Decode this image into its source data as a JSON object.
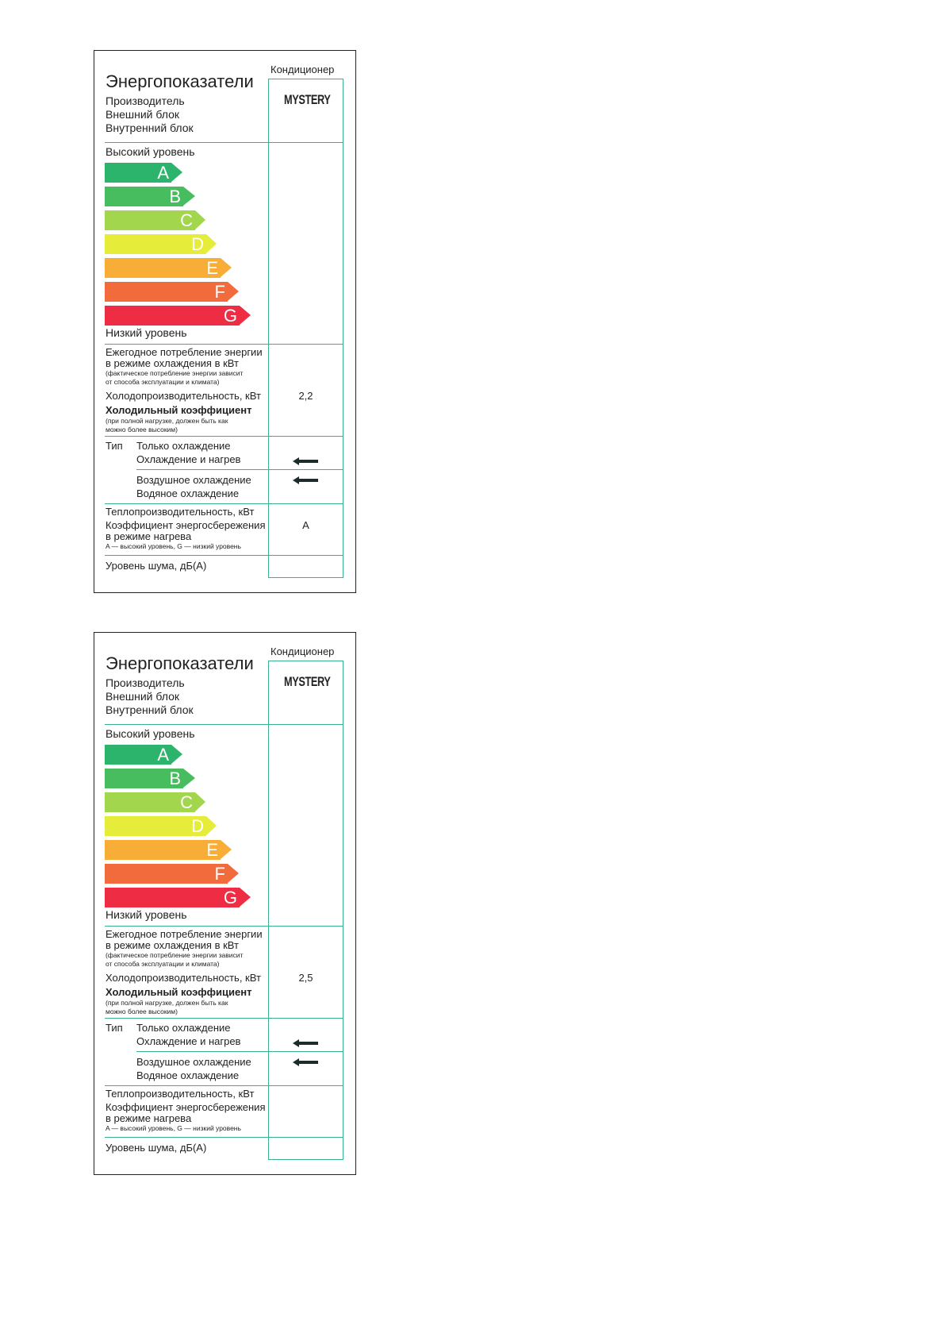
{
  "labels": [
    {
      "category": "Кондиционер",
      "title": "Энергопоказатели",
      "manufacturer_label": "Производитель",
      "outdoor_label": "Внешний блок",
      "indoor_label": "Внутренний блок",
      "brand": "MYSTERY",
      "high_level": "Высокий уровень",
      "low_level": "Низкий уровень",
      "classes": [
        {
          "letter": "A",
          "color": "#2db46c"
        },
        {
          "letter": "B",
          "color": "#47bd5f"
        },
        {
          "letter": "C",
          "color": "#a2d64c"
        },
        {
          "letter": "D",
          "color": "#e6ec3a"
        },
        {
          "letter": "E",
          "color": "#f7ad36"
        },
        {
          "letter": "F",
          "color": "#f26b3d"
        },
        {
          "letter": "G",
          "color": "#ee2d45"
        }
      ],
      "annual_consumption": "Ежегодное потребление энергии",
      "annual_consumption_2": "в режиме охлаждения в кВт",
      "annual_note_1": "(фактическое потребление энергии зависит",
      "annual_note_2": "от способа эксплуатации и климата)",
      "cooling_capacity": "Холодопроизводительность, кВт",
      "cooling_capacity_value": "2,2",
      "eer": "Холодильный коэффициент",
      "eer_note_1": "(при полной нагрузке, должен быть как",
      "eer_note_2": "можно более высоким)",
      "type": "Тип",
      "type_cool_only": "Только охлаждение",
      "type_cool_heat": "Охлаждение и нагрев",
      "type_air": "Воздушное охлаждение",
      "type_water": "Водяное охлаждение",
      "heating_capacity": "Теплопроизводительность, кВт",
      "cop": "Коэффициент энергосбережения",
      "cop_2": "в режиме нагрева",
      "cop_note": "A — высокий уровень, G — низкий уровень",
      "cop_value": "A",
      "noise": "Уровень шума, дБ(А)",
      "arrow_icon": "left-arrow"
    },
    {
      "category": "Кондиционер",
      "title": "Энергопоказатели",
      "manufacturer_label": "Производитель",
      "outdoor_label": "Внешний блок",
      "indoor_label": "Внутренний блок",
      "brand": "MYSTERY",
      "high_level": "Высокий уровень",
      "low_level": "Низкий уровень",
      "classes": [
        {
          "letter": "A",
          "color": "#2db46c"
        },
        {
          "letter": "B",
          "color": "#47bd5f"
        },
        {
          "letter": "C",
          "color": "#a2d64c"
        },
        {
          "letter": "D",
          "color": "#e6ec3a"
        },
        {
          "letter": "E",
          "color": "#f7ad36"
        },
        {
          "letter": "F",
          "color": "#f26b3d"
        },
        {
          "letter": "G",
          "color": "#ee2d45"
        }
      ],
      "annual_consumption": "Ежегодное потребление энергии",
      "annual_consumption_2": "в режиме охлаждения в кВт",
      "annual_note_1": "(фактическое потребление энергии зависит",
      "annual_note_2": "от способа эксплуатации и климата)",
      "cooling_capacity": "Холодопроизводительность, кВт",
      "cooling_capacity_value": "2,5",
      "eer": "Холодильный коэффициент",
      "eer_note_1": "(при полной нагрузке, должен быть как",
      "eer_note_2": "можно более высоким)",
      "type": "Тип",
      "type_cool_only": "Только охлаждение",
      "type_cool_heat": "Охлаждение и нагрев",
      "type_air": "Воздушное охлаждение",
      "type_water": "Водяное охлаждение",
      "heating_capacity": "Теплопроизводительность, кВт",
      "cop": "Коэффициент энергосбережения",
      "cop_2": "в режиме нагрева",
      "cop_note": "A — высокий уровень, G — низкий уровень",
      "cop_value": "",
      "noise": "Уровень шума, дБ(А)",
      "arrow_icon": "left-arrow"
    }
  ]
}
